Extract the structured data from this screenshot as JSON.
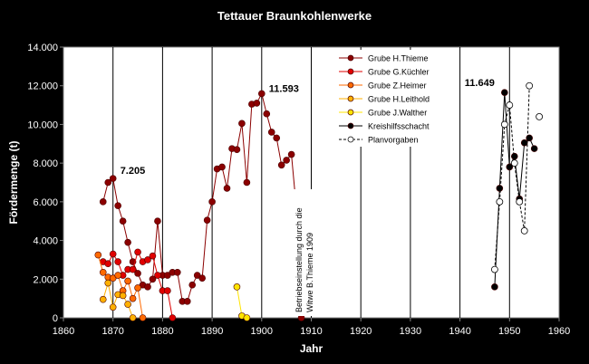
{
  "chart_data": {
    "type": "line",
    "title": "Tettauer Braunkohlenwerke",
    "xlabel": "Jahr",
    "ylabel": "Fördermenge (t)",
    "xlim": [
      1860,
      1960
    ],
    "ylim": [
      0,
      14000
    ],
    "x_ticks": [
      1860,
      1870,
      1880,
      1890,
      1900,
      1910,
      1920,
      1930,
      1940,
      1950,
      1960
    ],
    "y_ticks": [
      0,
      2000,
      4000,
      6000,
      8000,
      10000,
      12000,
      14000
    ],
    "x_tick_labels": [
      "1860",
      "1870",
      "1880",
      "1890",
      "1900",
      "1910",
      "1920",
      "1930",
      "1940",
      "1950",
      "1960"
    ],
    "y_tick_labels": [
      "0",
      "2.000",
      "4.000",
      "6.000",
      "8.000",
      "10.000",
      "12.000",
      "14.000"
    ],
    "grid": "vertical",
    "legend_position": "top-center",
    "series": [
      {
        "name": "Grube H.Thieme",
        "color": "#8B0000",
        "marker": "filled-circle",
        "line": "solid",
        "points": [
          [
            1868,
            6000
          ],
          [
            1869,
            7000
          ],
          [
            1870,
            7205
          ],
          [
            1871,
            5800
          ],
          [
            1872,
            5000
          ],
          [
            1873,
            3900
          ],
          [
            1874,
            2900
          ],
          [
            1875,
            2300
          ],
          [
            1876,
            1700
          ],
          [
            1877,
            1600
          ],
          [
            1878,
            2000
          ],
          [
            1879,
            5000
          ],
          [
            1880,
            2200
          ],
          [
            1881,
            2200
          ],
          [
            1882,
            2350
          ],
          [
            1883,
            2350
          ],
          [
            1884,
            850
          ],
          [
            1885,
            850
          ],
          [
            1886,
            1700
          ],
          [
            1887,
            2200
          ],
          [
            1888,
            2050
          ],
          [
            1889,
            5050
          ],
          [
            1890,
            6000
          ],
          [
            1891,
            7700
          ],
          [
            1892,
            7800
          ],
          [
            1893,
            6700
          ],
          [
            1894,
            8750
          ],
          [
            1895,
            8700
          ],
          [
            1896,
            10050
          ],
          [
            1897,
            7000
          ],
          [
            1898,
            11050
          ],
          [
            1899,
            11100
          ],
          [
            1900,
            11593
          ],
          [
            1901,
            10550
          ],
          [
            1902,
            9600
          ],
          [
            1903,
            9300
          ],
          [
            1904,
            7900
          ],
          [
            1905,
            8150
          ],
          [
            1906,
            8450
          ],
          [
            1907,
            5650
          ],
          [
            1908,
            0
          ]
        ]
      },
      {
        "name": "Grube G.Küchler",
        "color": "#E00000",
        "marker": "filled-circle",
        "line": "solid",
        "points": [
          [
            1868,
            2900
          ],
          [
            1869,
            2800
          ],
          [
            1870,
            3300
          ],
          [
            1871,
            2900
          ],
          [
            1872,
            2200
          ],
          [
            1873,
            2500
          ],
          [
            1874,
            2500
          ],
          [
            1875,
            3400
          ],
          [
            1876,
            2900
          ],
          [
            1877,
            3000
          ],
          [
            1878,
            3200
          ],
          [
            1879,
            2200
          ],
          [
            1880,
            1400
          ],
          [
            1881,
            1400
          ],
          [
            1882,
            0
          ]
        ]
      },
      {
        "name": "Grube Z.Heimer",
        "color": "#FF6A00",
        "marker": "filled-circle",
        "line": "solid",
        "points": [
          [
            1867,
            3250
          ],
          [
            1868,
            2350
          ],
          [
            1869,
            2100
          ],
          [
            1870,
            2050
          ],
          [
            1871,
            2200
          ],
          [
            1872,
            1400
          ],
          [
            1873,
            1900
          ],
          [
            1874,
            1000
          ],
          [
            1875,
            1550
          ],
          [
            1876,
            0
          ]
        ]
      },
      {
        "name": "Grube H.Leithold",
        "color": "#FFB000",
        "marker": "filled-circle",
        "line": "solid",
        "points": [
          [
            1868,
            950
          ],
          [
            1869,
            1800
          ],
          [
            1870,
            550
          ],
          [
            1871,
            1200
          ],
          [
            1872,
            1150
          ],
          [
            1873,
            700
          ],
          [
            1874,
            0
          ]
        ]
      },
      {
        "name": "Grube J.Walther",
        "color": "#FFE400",
        "marker": "filled-circle",
        "line": "solid",
        "points": [
          [
            1895,
            1600
          ],
          [
            1896,
            100
          ],
          [
            1897,
            0
          ]
        ]
      },
      {
        "name": "Kreishilfsschacht",
        "color": "#000000",
        "marker": "filled-circle",
        "line": "solid",
        "points": [
          [
            1947,
            1600
          ],
          [
            1948,
            6700
          ],
          [
            1949,
            11649
          ],
          [
            1950,
            7800
          ],
          [
            1951,
            8350
          ],
          [
            1952,
            6150
          ],
          [
            1953,
            9050
          ],
          [
            1954,
            9300
          ],
          [
            1955,
            8750
          ]
        ]
      },
      {
        "name": "Planvorgaben",
        "color": "#000000",
        "marker": "open-circle",
        "line": "dashed",
        "points": [
          [
            1947,
            2500
          ],
          [
            1948,
            6000
          ],
          [
            1949,
            10000
          ],
          [
            1950,
            11000
          ],
          [
            1951,
            8000
          ],
          [
            1952,
            6000
          ],
          [
            1953,
            4500
          ],
          [
            1954,
            12000
          ]
        ]
      }
    ],
    "extra_points": [
      {
        "series": "Planvorgaben",
        "point": [
          1956,
          10400
        ]
      }
    ],
    "annotations": [
      {
        "text": "7.205",
        "x": 1870,
        "y": 7205
      },
      {
        "text": "11.593",
        "x": 1900,
        "y": 11593
      },
      {
        "text": "11.649",
        "x": 1949,
        "y": 11649
      },
      {
        "text": "Betriebseinstellung durch die Witwe B.Thieme 1909",
        "x": 1909,
        "y": 0
      }
    ]
  }
}
